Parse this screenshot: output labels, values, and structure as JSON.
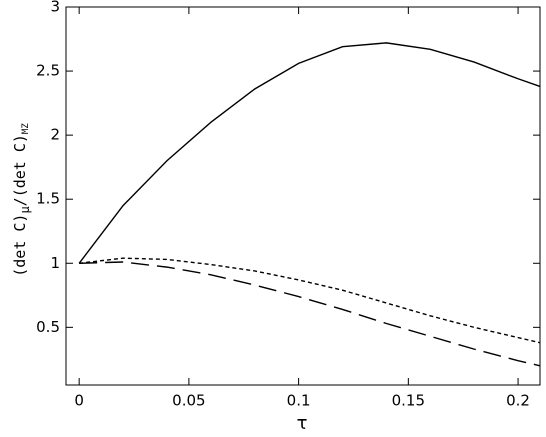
{
  "chart_data": {
    "type": "line",
    "xlabel": "τ",
    "ylabel": [
      "(det C)",
      "μ",
      "/(det C)",
      "MZ"
    ],
    "x": [
      0,
      0.02,
      0.04,
      0.06,
      0.08,
      0.1,
      0.12,
      0.14,
      0.16,
      0.18,
      0.2,
      0.21
    ],
    "series": [
      {
        "color": "#000000",
        "dash": "solid",
        "values": [
          1,
          1.45,
          1.8,
          2.1,
          2.36,
          2.56,
          2.69,
          2.72,
          2.67,
          2.57,
          2.44,
          2.38
        ]
      },
      {
        "color": "#000000",
        "dash": "short",
        "values": [
          1,
          1.04,
          1.03,
          0.99,
          0.94,
          0.87,
          0.79,
          0.69,
          0.59,
          0.5,
          0.42,
          0.38
        ]
      },
      {
        "color": "#000000",
        "dash": "long",
        "values": [
          1,
          1.01,
          0.97,
          0.91,
          0.83,
          0.74,
          0.64,
          0.53,
          0.43,
          0.33,
          0.24,
          0.2
        ]
      }
    ],
    "xlim": [
      -0.006,
      0.21
    ],
    "ylim": [
      0.05,
      3
    ],
    "xticks": [
      0,
      0.05,
      0.1,
      0.15,
      0.2
    ],
    "yticks": [
      0.5,
      1,
      1.5,
      2,
      2.5,
      3
    ]
  }
}
